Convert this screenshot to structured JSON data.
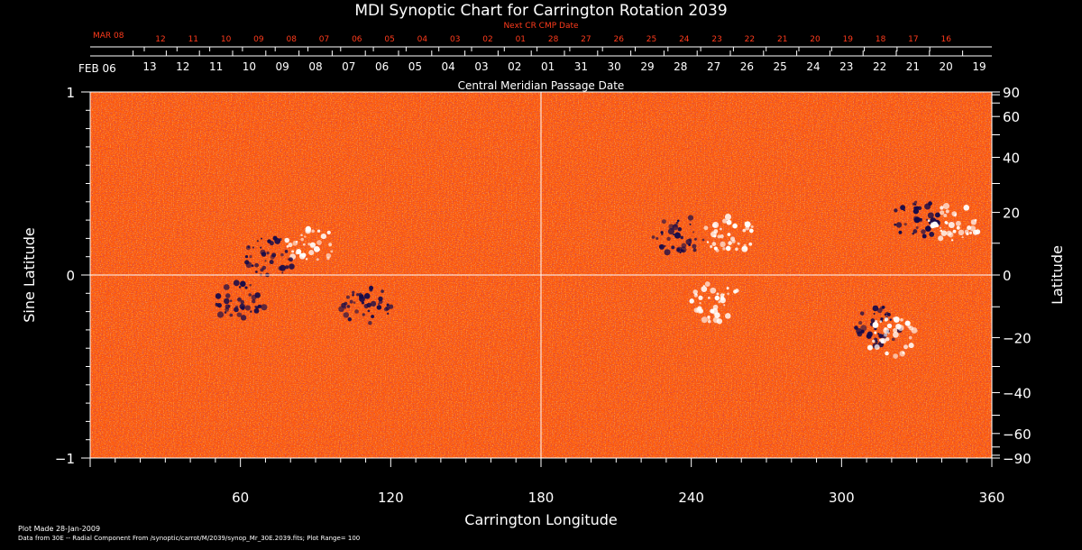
{
  "chart_data": {
    "type": "heatmap",
    "title": "MDI Synoptic Chart for Carrington Rotation 2039",
    "xlabel": "Carrington Longitude",
    "ylabel": "Sine Latitude",
    "ylabel_right": "Latitude",
    "xlim": [
      0,
      360
    ],
    "ylim": [
      -1,
      1
    ],
    "x_ticks": [
      60,
      120,
      180,
      240,
      300,
      360
    ],
    "y_ticks_left": [
      {
        "value": 1,
        "label": "1"
      },
      {
        "value": 0,
        "label": "0"
      },
      {
        "value": -1,
        "label": "−1"
      }
    ],
    "y_ticks_right": [
      {
        "lat": 90,
        "label": "90"
      },
      {
        "lat": 60,
        "label": "60"
      },
      {
        "lat": 40,
        "label": "40"
      },
      {
        "lat": 20,
        "label": "20"
      },
      {
        "lat": 0,
        "label": "0"
      },
      {
        "lat": -20,
        "label": "−20"
      },
      {
        "lat": -40,
        "label": "−40"
      },
      {
        "lat": -60,
        "label": "−60"
      },
      {
        "lat": -90,
        "label": "−90"
      }
    ],
    "top_axis": {
      "label": "Central Meridian Passage Date",
      "start_label": "FEB 06",
      "dates": [
        "13",
        "12",
        "11",
        "10",
        "09",
        "08",
        "07",
        "06",
        "05",
        "04",
        "03",
        "02",
        "01",
        "31",
        "30",
        "29",
        "28",
        "27",
        "26",
        "25",
        "24",
        "23",
        "22",
        "21",
        "20",
        "19"
      ]
    },
    "next_cr_axis": {
      "label": "Next CR CMP Date",
      "start_label": "MAR 08",
      "dates": [
        "12",
        "11",
        "10",
        "09",
        "08",
        "07",
        "06",
        "05",
        "04",
        "03",
        "02",
        "01",
        "28",
        "27",
        "26",
        "25",
        "24",
        "23",
        "22",
        "21",
        "20",
        "19",
        "18",
        "17",
        "16"
      ]
    },
    "grid": "crosshair at longitude 180 and sine latitude 0",
    "colors": {
      "background_field": "#ff5a0a",
      "positive_flux": "#ffffff",
      "negative_flux": "#140a4a",
      "next_cr_text": "#ff3b1c"
    },
    "features": [
      {
        "polarity": "positive",
        "lon": 88,
        "sinlat": 0.16
      },
      {
        "polarity": "negative",
        "lon": 72,
        "sinlat": 0.1
      },
      {
        "polarity": "negative",
        "lon": 235,
        "sinlat": 0.22
      },
      {
        "polarity": "positive",
        "lon": 255,
        "sinlat": 0.22
      },
      {
        "polarity": "negative",
        "lon": 330,
        "sinlat": 0.31
      },
      {
        "polarity": "positive",
        "lon": 345,
        "sinlat": 0.28
      },
      {
        "polarity": "positive",
        "lon": 250,
        "sinlat": -0.15
      },
      {
        "polarity": "negative",
        "lon": 315,
        "sinlat": -0.28
      },
      {
        "polarity": "positive",
        "lon": 320,
        "sinlat": -0.34
      },
      {
        "polarity": "negative",
        "lon": 110,
        "sinlat": -0.16
      },
      {
        "polarity": "negative",
        "lon": 60,
        "sinlat": -0.15
      }
    ]
  },
  "footer": {
    "plot_made": "Plot Made 28-Jan-2009",
    "source": "Data from 30E -- Radial Component From /synoptic/carrot/M/2039/synop_Mr_30E.2039.fits; Plot Range= 100"
  }
}
